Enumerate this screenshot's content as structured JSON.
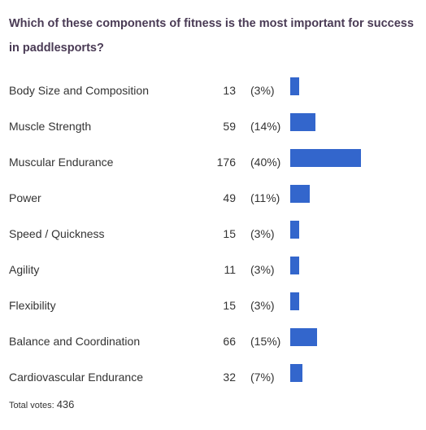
{
  "poll": {
    "question": "Which of these components of fitness is the most important for success in paddlesports?",
    "bar_color": "#3366cc",
    "options": [
      {
        "label": "Body Size and Composition",
        "count": "13",
        "pct": "(3%)",
        "share": 0.03
      },
      {
        "label": "Muscle Strength",
        "count": "59",
        "pct": "(14%)",
        "share": 0.14
      },
      {
        "label": "Muscular Endurance",
        "count": "176",
        "pct": "(40%)",
        "share": 0.4
      },
      {
        "label": "Power",
        "count": "49",
        "pct": "(11%)",
        "share": 0.11
      },
      {
        "label": "Speed / Quickness",
        "count": "15",
        "pct": "(3%)",
        "share": 0.03
      },
      {
        "label": "Agility",
        "count": "11",
        "pct": "(3%)",
        "share": 0.03
      },
      {
        "label": "Flexibility",
        "count": "15",
        "pct": "(3%)",
        "share": 0.03
      },
      {
        "label": "Balance and Coordination",
        "count": "66",
        "pct": "(15%)",
        "share": 0.15
      },
      {
        "label": "Cardiovascular Endurance",
        "count": "32",
        "pct": "(7%)",
        "share": 0.07
      }
    ],
    "total_label": "Total votes:",
    "total_value": "436"
  }
}
